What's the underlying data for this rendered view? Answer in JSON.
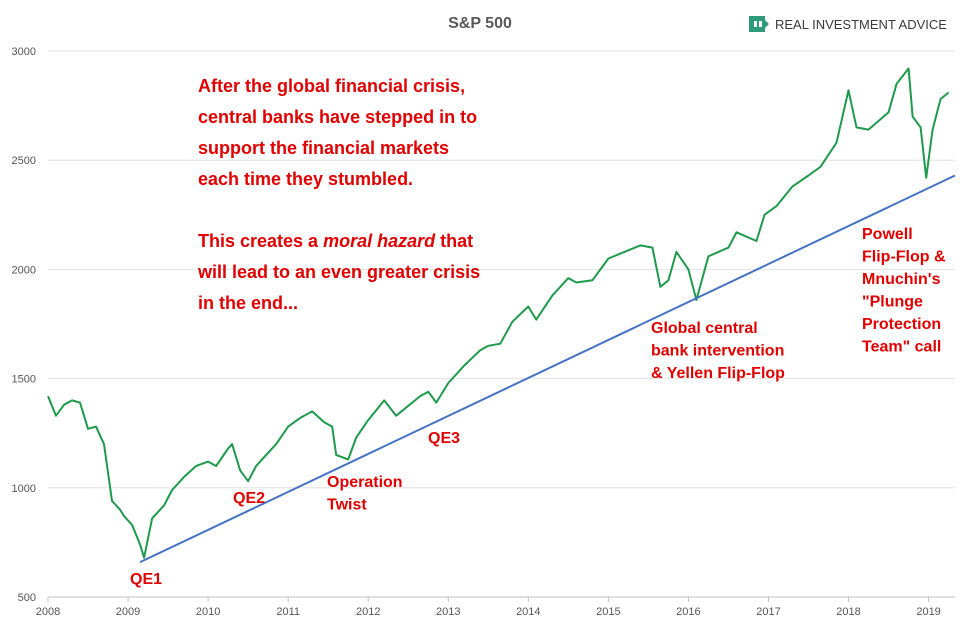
{
  "chart_data": {
    "type": "line",
    "title": "S&P 500",
    "brand": "REAL INVESTMENT ADVICE",
    "xlim": [
      2008,
      2019.33
    ],
    "xticks": [
      2008,
      2009,
      2010,
      2011,
      2012,
      2013,
      2014,
      2015,
      2016,
      2017,
      2018,
      2019
    ],
    "ylim": [
      500,
      3000
    ],
    "yticks": [
      500,
      1000,
      1500,
      2000,
      2500,
      3000
    ],
    "grid": true,
    "series": [
      {
        "color": "#1f9a4c",
        "x": [
          2008.0,
          2008.1,
          2008.2,
          2008.3,
          2008.4,
          2008.5,
          2008.6,
          2008.7,
          2008.8,
          2008.9,
          2008.95,
          2009.05,
          2009.15,
          2009.2,
          2009.3,
          2009.45,
          2009.55,
          2009.7,
          2009.85,
          2010.0,
          2010.1,
          2010.25,
          2010.3,
          2010.4,
          2010.5,
          2010.6,
          2010.7,
          2010.85,
          2011.0,
          2011.15,
          2011.3,
          2011.45,
          2011.55,
          2011.6,
          2011.75,
          2011.85,
          2012.0,
          2012.2,
          2012.35,
          2012.45,
          2012.65,
          2012.75,
          2012.85,
          2013.0,
          2013.2,
          2013.4,
          2013.5,
          2013.65,
          2013.8,
          2014.0,
          2014.1,
          2014.3,
          2014.5,
          2014.6,
          2014.8,
          2015.0,
          2015.2,
          2015.4,
          2015.55,
          2015.65,
          2015.75,
          2015.85,
          2016.0,
          2016.1,
          2016.25,
          2016.5,
          2016.6,
          2016.85,
          2016.95,
          2017.1,
          2017.3,
          2017.5,
          2017.65,
          2017.85,
          2018.0,
          2018.1,
          2018.25,
          2018.5,
          2018.6,
          2018.75,
          2018.8,
          2018.9,
          2018.97,
          2019.05,
          2019.15,
          2019.25
        ],
        "values": [
          1420,
          1330,
          1380,
          1400,
          1390,
          1270,
          1280,
          1200,
          940,
          900,
          870,
          830,
          740,
          680,
          860,
          920,
          990,
          1050,
          1100,
          1120,
          1100,
          1180,
          1200,
          1080,
          1030,
          1100,
          1140,
          1200,
          1280,
          1320,
          1350,
          1300,
          1280,
          1150,
          1130,
          1230,
          1310,
          1400,
          1330,
          1360,
          1420,
          1440,
          1390,
          1480,
          1560,
          1630,
          1650,
          1660,
          1760,
          1830,
          1770,
          1880,
          1960,
          1940,
          1950,
          2050,
          2080,
          2110,
          2100,
          1920,
          1950,
          2080,
          2000,
          1860,
          2060,
          2100,
          2170,
          2130,
          2250,
          2290,
          2380,
          2430,
          2470,
          2580,
          2820,
          2650,
          2640,
          2720,
          2850,
          2920,
          2700,
          2650,
          2420,
          2640,
          2780,
          2810
        ]
      }
    ],
    "trendline": {
      "color": "#4472c4",
      "x": [
        2009.15,
        2019.33
      ],
      "values": [
        660,
        2430
      ]
    },
    "note": {
      "color": "#e00000",
      "paragraphs": [
        [
          [
            {
              "text": "After the global financial crisis,"
            }
          ],
          [
            {
              "text": "central banks have stepped in to"
            }
          ],
          [
            {
              "text": "support the financial markets"
            }
          ],
          [
            {
              "text": "each time they stumbled."
            }
          ]
        ],
        [
          [
            {
              "text": "This creates a "
            },
            {
              "text": "moral hazard",
              "italic": true
            },
            {
              "text": " that"
            }
          ],
          [
            {
              "text": "will lead to an even greater crisis"
            }
          ],
          [
            {
              "text": "in the end..."
            }
          ]
        ]
      ]
    },
    "annotations": [
      {
        "lines": [
          "QE1"
        ]
      },
      {
        "lines": [
          "QE2"
        ]
      },
      {
        "lines": [
          "Operation",
          "Twist"
        ]
      },
      {
        "lines": [
          "QE3"
        ]
      },
      {
        "lines": [
          "Global central",
          "bank intervention",
          "& Yellen Flip-Flop"
        ]
      },
      {
        "lines": [
          "Powell",
          "Flip-Flop &",
          "Mnuchin's",
          "\"Plunge",
          "Protection",
          "Team\" call"
        ]
      }
    ]
  }
}
